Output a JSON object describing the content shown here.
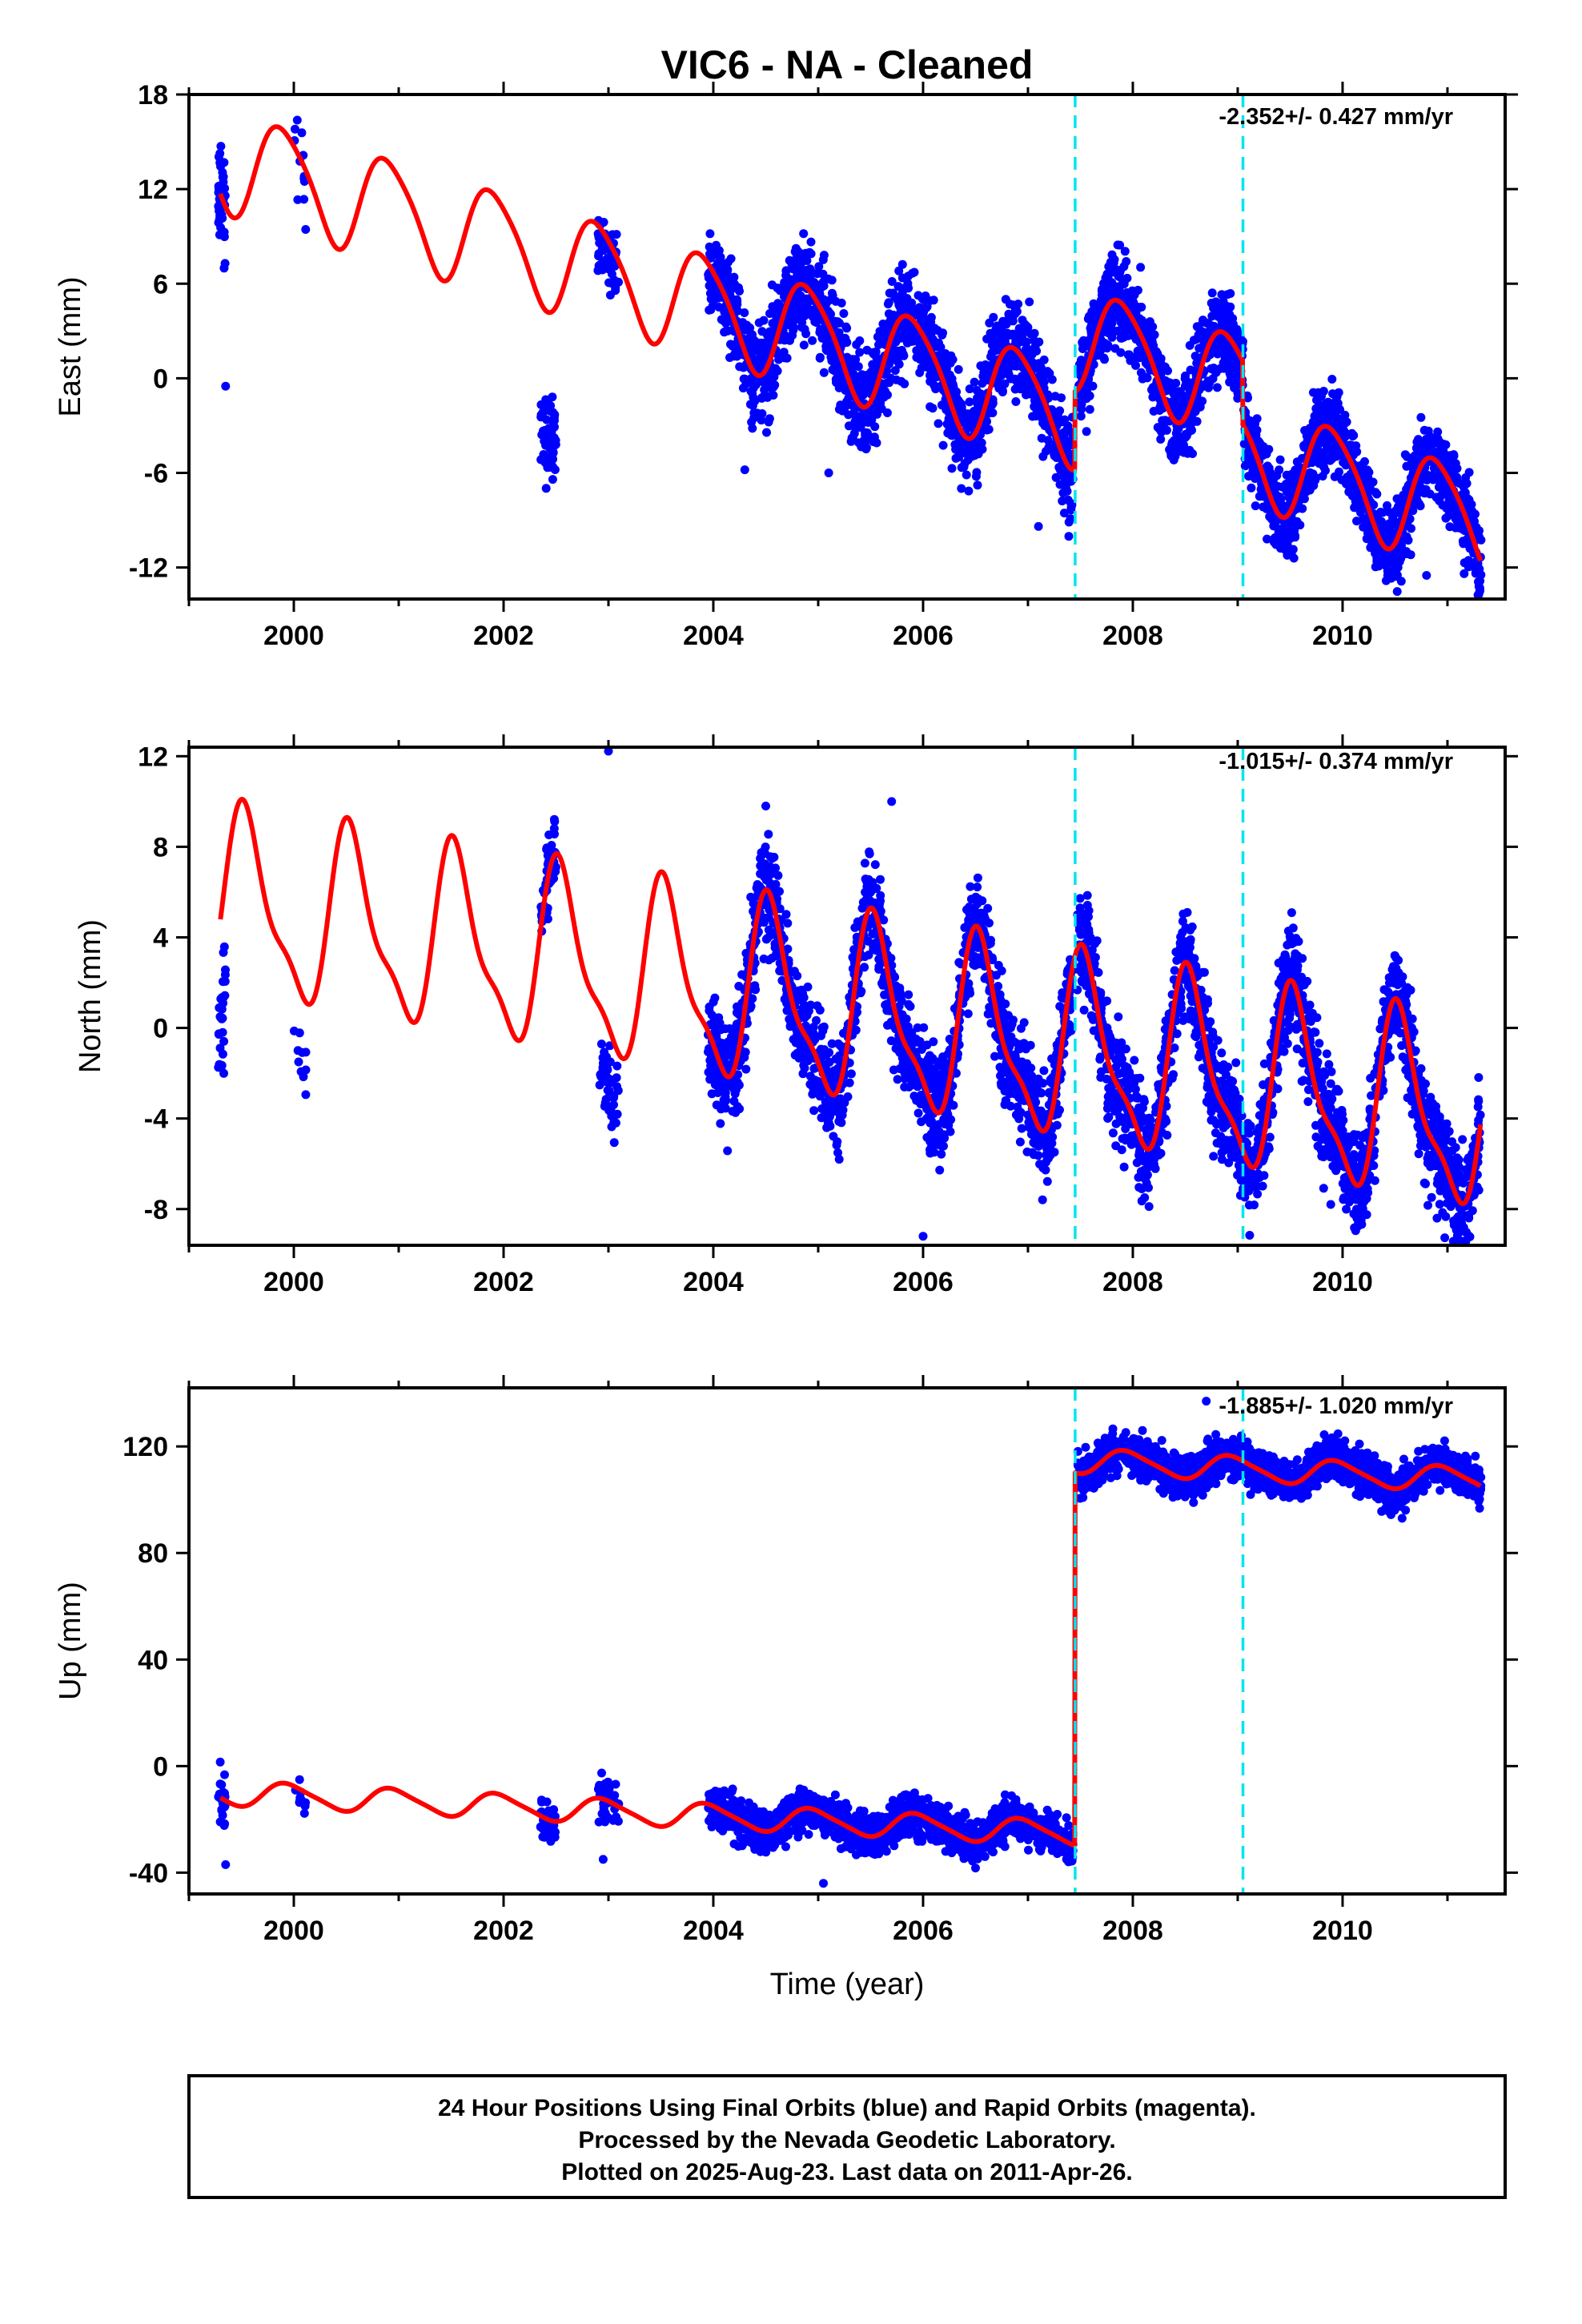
{
  "chart_data": {
    "type": "scatter",
    "title": "VIC6  - NA - Cleaned",
    "xlabel": "Time (year)",
    "xlim": [
      1999.0,
      2011.55
    ],
    "x_ticks": [
      2000,
      2002,
      2004,
      2006,
      2008,
      2010
    ],
    "x_tick_labels": [
      "2000",
      "2002",
      "2004",
      "2006",
      "2008",
      "2010"
    ],
    "vertical_lines_x": [
      2007.45,
      2009.05
    ],
    "colors": {
      "observations": "#0000ff",
      "model": "#ff0000",
      "breaks": "#00e5ee",
      "frame": "#000000"
    },
    "grid": false,
    "panels": [
      {
        "name": "east",
        "ylabel": "East (mm)",
        "ylim": [
          -14,
          18
        ],
        "y_ticks": [
          -12,
          -6,
          0,
          6,
          12,
          18
        ],
        "y_tick_labels": [
          "-12",
          "-6",
          "0",
          "6",
          "12",
          "18"
        ],
        "rate_label": "-2.352+/- 0.427 mm/yr",
        "model_series": {
          "offset": 14,
          "trend": -2.0,
          "ann": 3.2,
          "ann_phase": 0.65,
          "semi": 0.5,
          "semi_phase": 0.1,
          "steps": [
            [
              2007.45,
              5.0
            ],
            [
              2009.05,
              -4.0
            ]
          ]
        },
        "obs_segments": [
          {
            "x": [
              1999.28,
              1999.35
            ],
            "n": 40,
            "resid": [
              -4,
              4
            ]
          },
          {
            "x": [
              2000.0,
              2000.12
            ],
            "n": 12,
            "resid": [
              -4,
              3
            ]
          },
          {
            "x": [
              2002.35,
              2002.5
            ],
            "n": 70,
            "resid": [
              -12,
              -4
            ]
          },
          {
            "x": [
              2002.9,
              2003.1
            ],
            "n": 60,
            "resid": [
              -4,
              2
            ]
          },
          {
            "x": [
              2003.95,
              2007.43
            ],
            "n": 1700,
            "resid": [
              -4,
              4
            ]
          },
          {
            "x": [
              2007.47,
              2011.32
            ],
            "n": 1900,
            "resid": [
              -3.5,
              3.5
            ]
          }
        ],
        "obs_outliers": [
          [
            1999.35,
            -0.5
          ],
          [
            2007.1,
            -9.4
          ],
          [
            2004.3,
            -5.8
          ],
          [
            2005.1,
            -6.0
          ],
          [
            2010.8,
            -12.5
          ],
          [
            2011.3,
            -13.2
          ]
        ]
      },
      {
        "name": "north",
        "ylabel": "North (mm)",
        "ylim": [
          -9.6,
          12.4
        ],
        "y_ticks": [
          -8,
          -4,
          0,
          4,
          8,
          12
        ],
        "y_tick_labels": [
          "-8",
          "-4",
          "0",
          "4",
          "8",
          "12"
        ],
        "rate_label": "-1.015+/- 0.374 mm/yr",
        "model_series": {
          "offset": 5.5,
          "trend": -0.8,
          "ann": 3.8,
          "ann_phase": 0.3,
          "semi": 1.2,
          "semi_phase": 0.35,
          "steps": []
        },
        "obs_segments": [
          {
            "x": [
              1999.28,
              1999.35
            ],
            "n": 30,
            "resid": [
              -8,
              -1
            ]
          },
          {
            "x": [
              2000.0,
              2000.12
            ],
            "n": 10,
            "resid": [
              -6,
              -1
            ]
          },
          {
            "x": [
              2002.35,
              2002.5
            ],
            "n": 50,
            "resid": [
              -2,
              2
            ]
          },
          {
            "x": [
              2002.9,
              2003.1
            ],
            "n": 50,
            "resid": [
              -5,
              0
            ]
          },
          {
            "x": [
              2003.95,
              2007.43
            ],
            "n": 1700,
            "resid": [
              -3,
              3
            ]
          },
          {
            "x": [
              2007.47,
              2011.32
            ],
            "n": 1900,
            "resid": [
              -3,
              3
            ]
          }
        ],
        "obs_outliers": [
          [
            2003.0,
            12.3
          ],
          [
            2006.0,
            -9.2
          ],
          [
            2005.7,
            10.0
          ],
          [
            2004.5,
            9.8
          ],
          [
            2010.9,
            -8.4
          ],
          [
            2005.2,
            -5.8
          ]
        ]
      },
      {
        "name": "up",
        "ylabel": "Up (mm)",
        "ylim": [
          -48,
          142
        ],
        "y_ticks": [
          -40,
          0,
          40,
          80,
          120
        ],
        "y_tick_labels": [
          "-40",
          "0",
          "40",
          "80",
          "120"
        ],
        "rate_label": "-1.885+/- 1.020 mm/yr",
        "model_series": {
          "offset": -10,
          "trend": -1.885,
          "ann": 4.5,
          "ann_phase": 0.7,
          "semi": 0.8,
          "semi_phase": 0.2,
          "steps": [
            [
              2007.45,
              140.0
            ]
          ]
        },
        "obs_segments": [
          {
            "x": [
              1999.28,
              1999.35
            ],
            "n": 25,
            "resid": [
              -15,
              15
            ]
          },
          {
            "x": [
              2000.0,
              2000.12
            ],
            "n": 10,
            "resid": [
              -10,
              5
            ]
          },
          {
            "x": [
              2002.35,
              2002.5
            ],
            "n": 40,
            "resid": [
              -12,
              10
            ]
          },
          {
            "x": [
              2002.9,
              2003.1
            ],
            "n": 40,
            "resid": [
              -12,
              12
            ]
          },
          {
            "x": [
              2003.95,
              2007.43
            ],
            "n": 1700,
            "resid": [
              -10,
              10
            ]
          },
          {
            "x": [
              2007.47,
              2011.32
            ],
            "n": 1900,
            "resid": [
              -10,
              10
            ]
          }
        ],
        "obs_outliers": [
          [
            1999.35,
            -37
          ],
          [
            2002.95,
            -35
          ],
          [
            2005.05,
            -44
          ],
          [
            2008.7,
            137
          ]
        ]
      }
    ]
  },
  "footer": {
    "line1": "24 Hour Positions Using Final Orbits (blue) and Rapid Orbits (magenta).",
    "line2": "Processed by the Nevada Geodetic Laboratory.",
    "line3": "Plotted on 2025-Aug-23. Last data on 2011-Apr-26."
  }
}
